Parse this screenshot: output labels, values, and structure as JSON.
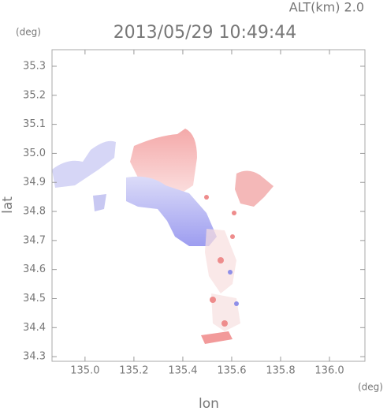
{
  "chart_data": {
    "type": "radar-map",
    "title": "ALT(km) 2.0",
    "subtitle": "2013/05/29 10:49:44",
    "x_label": "lon",
    "y_label": "lat",
    "x_unit": "(deg)",
    "y_unit": "(deg)",
    "xlim": [
      134.865,
      136.145
    ],
    "ylim": [
      34.284,
      35.357
    ],
    "xticks": [
      {
        "value": 135,
        "label": "135.0"
      },
      135.2,
      135.4,
      135.6,
      135.8,
      {
        "value": 136,
        "label": "136.0"
      }
    ],
    "yticks": [
      35.3,
      35.2,
      35.1,
      {
        "value": 35,
        "label": "35.0"
      },
      34.9,
      34.8,
      34.7,
      34.6,
      34.5,
      34.4,
      34.3
    ]
  }
}
